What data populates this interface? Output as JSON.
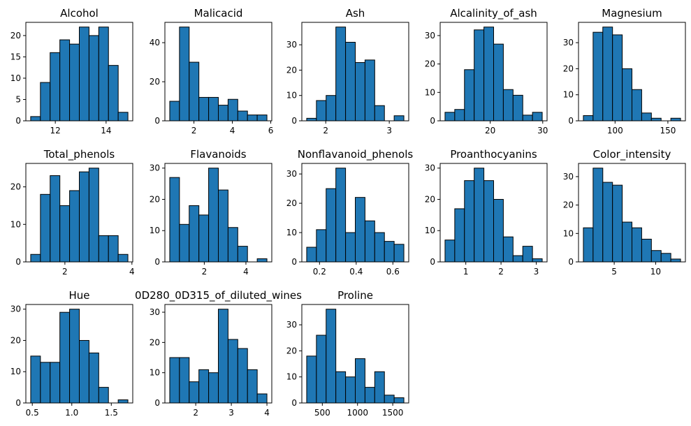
{
  "chart_data": [
    {
      "type": "bar",
      "title": "Alcohol",
      "bin_edges": [
        11.03,
        11.413,
        11.796,
        12.179,
        12.562,
        12.945,
        13.328,
        13.711,
        14.094,
        14.477,
        14.86
      ],
      "values": [
        1,
        9,
        16,
        19,
        18,
        22,
        20,
        22,
        13,
        2
      ],
      "xticks": [
        12,
        14
      ],
      "xtick_labels": [
        "12",
        "14"
      ],
      "yticks": [
        0,
        5,
        10,
        15,
        20
      ],
      "ytick_labels": [
        "0",
        "5",
        "10",
        "15",
        "20"
      ],
      "xlim": [
        10.84,
        15.05
      ],
      "ylim": [
        0,
        23.1
      ]
    },
    {
      "type": "bar",
      "title": "Malicacid",
      "bin_edges": [
        0.74,
        1.246,
        1.752,
        2.258,
        2.764,
        3.27,
        3.776,
        4.282,
        4.788,
        5.294,
        5.8
      ],
      "values": [
        10,
        48,
        30,
        12,
        12,
        8,
        11,
        5,
        3,
        3
      ],
      "xticks": [
        2,
        4,
        6
      ],
      "xtick_labels": [
        "2",
        "4",
        "6"
      ],
      "yticks": [
        0,
        20,
        40
      ],
      "ytick_labels": [
        "0",
        "20",
        "40"
      ],
      "xlim": [
        0.487,
        6.053
      ],
      "ylim": [
        0,
        50.4
      ]
    },
    {
      "type": "bar",
      "title": "Ash",
      "bin_edges": [
        1.7,
        1.853,
        2.006,
        2.159,
        2.312,
        2.465,
        2.618,
        2.771,
        2.924,
        3.077,
        3.23
      ],
      "values": [
        1,
        8,
        10,
        37,
        31,
        23,
        24,
        6,
        0,
        2
      ],
      "xticks": [
        2,
        3
      ],
      "xtick_labels": [
        "2",
        "3"
      ],
      "yticks": [
        0,
        10,
        20,
        30
      ],
      "ytick_labels": [
        "0",
        "10",
        "20",
        "30"
      ],
      "xlim": [
        1.6235,
        3.3065
      ],
      "ylim": [
        0,
        38.85
      ]
    },
    {
      "type": "bar",
      "title": "Alcalinity_of_ash",
      "bin_edges": [
        11.4,
        13.25,
        15.1,
        16.95,
        18.8,
        20.65,
        22.5,
        24.35,
        26.2,
        28.05,
        29.9
      ],
      "values": [
        3,
        4,
        18,
        32,
        33,
        27,
        11,
        9,
        2,
        3
      ],
      "xticks": [
        20,
        30
      ],
      "xtick_labels": [
        "20",
        "30"
      ],
      "yticks": [
        0,
        10,
        20,
        30
      ],
      "ytick_labels": [
        "0",
        "10",
        "20",
        "30"
      ],
      "xlim": [
        10.475,
        30.825
      ],
      "ylim": [
        0,
        34.65
      ]
    },
    {
      "type": "bar",
      "title": "Magnesium",
      "bin_edges": [
        70,
        79.2,
        88.4,
        97.6,
        106.8,
        116,
        125.2,
        134.4,
        143.6,
        152.8,
        162
      ],
      "values": [
        2,
        34,
        36,
        33,
        20,
        12,
        3,
        1,
        0,
        1
      ],
      "xticks": [
        100,
        150
      ],
      "xtick_labels": [
        "100",
        "150"
      ],
      "yticks": [
        0,
        10,
        20,
        30
      ],
      "ytick_labels": [
        "0",
        "10",
        "20",
        "30"
      ],
      "xlim": [
        65.4,
        166.6
      ],
      "ylim": [
        0,
        37.8
      ]
    },
    {
      "type": "bar",
      "title": "Total_phenols",
      "bin_edges": [
        0.98,
        1.27,
        1.56,
        1.85,
        2.14,
        2.43,
        2.72,
        3.01,
        3.3,
        3.59,
        3.88
      ],
      "values": [
        2,
        18,
        23,
        15,
        19,
        24,
        25,
        7,
        7,
        2
      ],
      "xticks": [
        2,
        4
      ],
      "xtick_labels": [
        "2",
        "4"
      ],
      "yticks": [
        0,
        10,
        20
      ],
      "ytick_labels": [
        "0",
        "10",
        "20"
      ],
      "xlim": [
        0.835,
        4.025
      ],
      "ylim": [
        0,
        26.25
      ]
    },
    {
      "type": "bar",
      "title": "Flavanoids",
      "bin_edges": [
        0.34,
        0.807,
        1.274,
        1.741,
        2.208,
        2.675,
        3.142,
        3.609,
        4.076,
        4.543,
        5.01
      ],
      "values": [
        27,
        12,
        18,
        15,
        30,
        23,
        11,
        5,
        0,
        1
      ],
      "xticks": [
        2,
        4
      ],
      "xtick_labels": [
        "2",
        "4"
      ],
      "yticks": [
        0,
        10,
        20,
        30
      ],
      "ytick_labels": [
        "0",
        "10",
        "20",
        "30"
      ],
      "xlim": [
        0.1065,
        5.2435
      ],
      "ylim": [
        0,
        31.5
      ]
    },
    {
      "type": "bar",
      "title": "Nonflavanoid_phenols",
      "bin_edges": [
        0.13,
        0.183,
        0.236,
        0.289,
        0.342,
        0.395,
        0.448,
        0.501,
        0.554,
        0.607,
        0.66
      ],
      "values": [
        5,
        11,
        25,
        32,
        10,
        22,
        14,
        10,
        7,
        6
      ],
      "xticks": [
        0.2,
        0.4,
        0.6
      ],
      "xtick_labels": [
        "0.2",
        "0.4",
        "0.6"
      ],
      "yticks": [
        0,
        10,
        20,
        30
      ],
      "ytick_labels": [
        "0",
        "10",
        "20",
        "30"
      ],
      "xlim": [
        0.1035,
        0.6865
      ],
      "ylim": [
        0,
        33.6
      ]
    },
    {
      "type": "bar",
      "title": "Proanthocyanins",
      "bin_edges": [
        0.41,
        0.686,
        0.962,
        1.238,
        1.514,
        1.79,
        2.066,
        2.342,
        2.618,
        2.894,
        3.17
      ],
      "values": [
        7,
        17,
        26,
        30,
        26,
        20,
        8,
        2,
        5,
        1
      ],
      "xticks": [
        1,
        2,
        3
      ],
      "xtick_labels": [
        "1",
        "2",
        "3"
      ],
      "yticks": [
        0,
        10,
        20,
        30
      ],
      "ytick_labels": [
        "0",
        "10",
        "20",
        "30"
      ],
      "xlim": [
        0.272,
        3.308
      ],
      "ylim": [
        0,
        31.5
      ]
    },
    {
      "type": "bar",
      "title": "Color_intensity",
      "bin_edges": [
        1.28,
        2.452,
        3.624,
        4.796,
        5.968,
        7.14,
        8.312,
        9.484,
        10.656,
        11.828,
        13.0
      ],
      "values": [
        12,
        33,
        28,
        27,
        14,
        12,
        8,
        4,
        3,
        1
      ],
      "xticks": [
        5,
        10
      ],
      "xtick_labels": [
        "5",
        "10"
      ],
      "yticks": [
        0,
        10,
        20,
        30
      ],
      "ytick_labels": [
        "0",
        "10",
        "20",
        "30"
      ],
      "xlim": [
        0.694,
        13.586
      ],
      "ylim": [
        0,
        34.65
      ]
    },
    {
      "type": "bar",
      "title": "Hue",
      "bin_edges": [
        0.48,
        0.603,
        0.726,
        0.849,
        0.972,
        1.095,
        1.218,
        1.341,
        1.464,
        1.587,
        1.71
      ],
      "values": [
        15,
        13,
        13,
        29,
        30,
        20,
        16,
        5,
        0,
        1
      ],
      "xticks": [
        0.5,
        1.0,
        1.5
      ],
      "xtick_labels": [
        "0.5",
        "1.0",
        "1.5"
      ],
      "yticks": [
        0,
        10,
        20,
        30
      ],
      "ytick_labels": [
        "0",
        "10",
        "20",
        "30"
      ],
      "xlim": [
        0.4185,
        1.7715
      ],
      "ylim": [
        0,
        31.5
      ]
    },
    {
      "type": "bar",
      "title": "0D280_0D315_of_diluted_wines",
      "bin_edges": [
        1.27,
        1.543,
        1.816,
        2.089,
        2.362,
        2.635,
        2.908,
        3.181,
        3.454,
        3.727,
        4.0
      ],
      "values": [
        15,
        15,
        7,
        11,
        10,
        31,
        21,
        18,
        11,
        3
      ],
      "xticks": [
        2,
        3,
        4
      ],
      "xtick_labels": [
        "2",
        "3",
        "4"
      ],
      "yticks": [
        0,
        10,
        20,
        30
      ],
      "ytick_labels": [
        "0",
        "10",
        "20",
        "30"
      ],
      "xlim": [
        1.1335,
        4.1365
      ],
      "ylim": [
        0,
        32.55
      ]
    },
    {
      "type": "bar",
      "title": "Proline",
      "bin_edges": [
        278,
        416,
        554,
        692,
        830,
        968,
        1106,
        1244,
        1382,
        1520,
        1658
      ],
      "values": [
        18,
        26,
        36,
        12,
        10,
        17,
        6,
        12,
        3,
        2
      ],
      "xticks": [
        500,
        1000,
        1500
      ],
      "xtick_labels": [
        "500",
        "1000",
        "1500"
      ],
      "yticks": [
        0,
        10,
        20,
        30
      ],
      "ytick_labels": [
        "0",
        "10",
        "20",
        "30"
      ],
      "xlim": [
        209,
        1727
      ],
      "ylim": [
        0,
        37.8
      ]
    }
  ],
  "style": {
    "bar_color": "#1f77b4",
    "edge_color": "#000000",
    "axis_color": "#000000",
    "background": "#ffffff"
  }
}
